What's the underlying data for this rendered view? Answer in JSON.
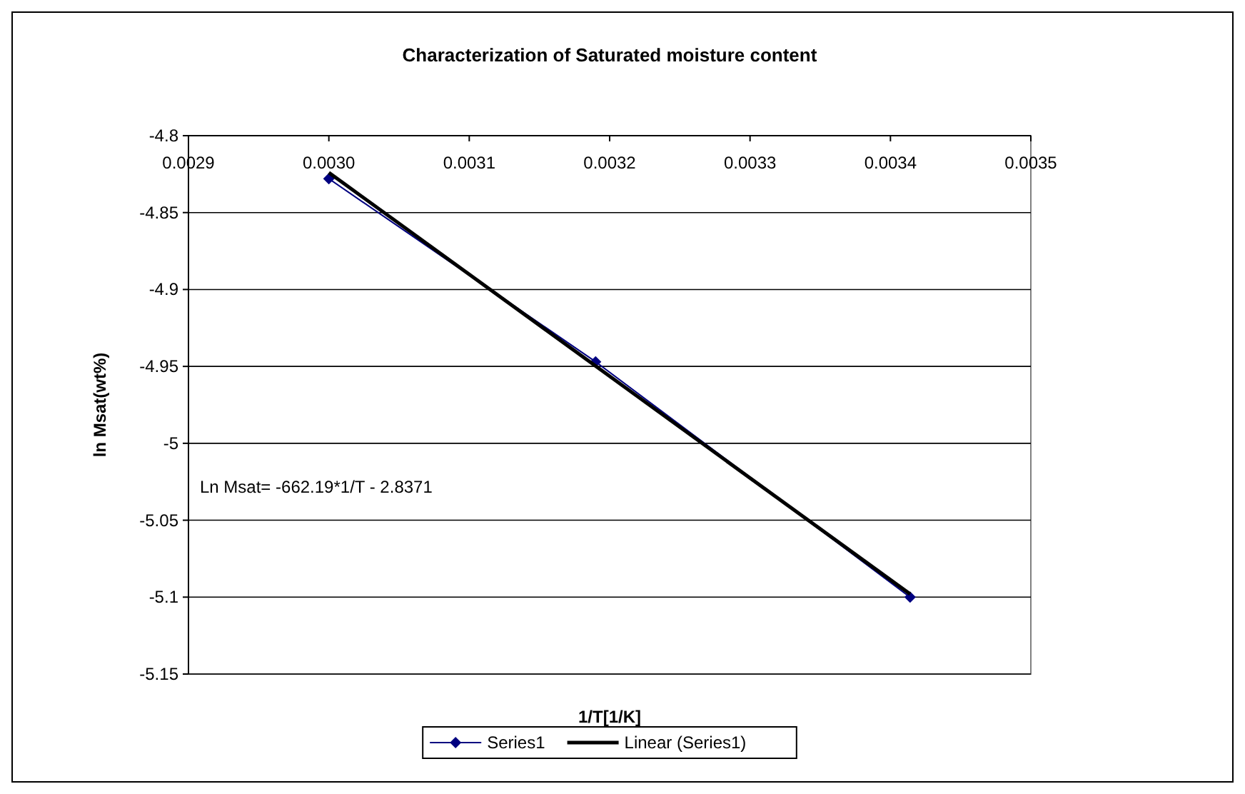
{
  "chart_data": {
    "type": "line",
    "title": "Characterization of Saturated moisture content",
    "xlabel": "1/T[1/K]",
    "ylabel": "ln Msat(wt%)",
    "xlim": [
      0.0029,
      0.0035
    ],
    "xticks": [
      {
        "value": 0.0029,
        "label": "0.0029"
      },
      {
        "value": 0.003,
        "label": "0.0030"
      },
      {
        "value": 0.0031,
        "label": "0.0031"
      },
      {
        "value": 0.0032,
        "label": "0.0032"
      },
      {
        "value": 0.0033,
        "label": "0.0033"
      },
      {
        "value": 0.0034,
        "label": "0.0034"
      },
      {
        "value": 0.0035,
        "label": "0.0035"
      }
    ],
    "ylim": [
      -5.15,
      -4.8
    ],
    "yticks": [
      -5.15,
      {
        "value": -5.1,
        "label": "-5.1"
      },
      -5.05,
      {
        "value": -5,
        "label": "-5"
      },
      -4.95,
      {
        "value": -4.9,
        "label": "-4.9"
      },
      -4.85,
      {
        "value": -4.8,
        "label": "-4.8"
      }
    ],
    "grid": "y",
    "legend": "bottom",
    "annotations": [
      "Ln Msat= -662.19*1/T - 2.8371"
    ],
    "series": [
      {
        "name": "Series1",
        "color": "#000080",
        "marker": "diamond",
        "x": [
          0.003,
          0.00319,
          0.003414
        ],
        "values": [
          -4.828,
          -4.947,
          -5.1
        ]
      },
      {
        "name": "Linear (Series1)",
        "color": "#000000",
        "marker": "none",
        "x": [
          0.003,
          0.003414
        ],
        "values": [
          -4.824,
          -5.098
        ]
      }
    ]
  }
}
